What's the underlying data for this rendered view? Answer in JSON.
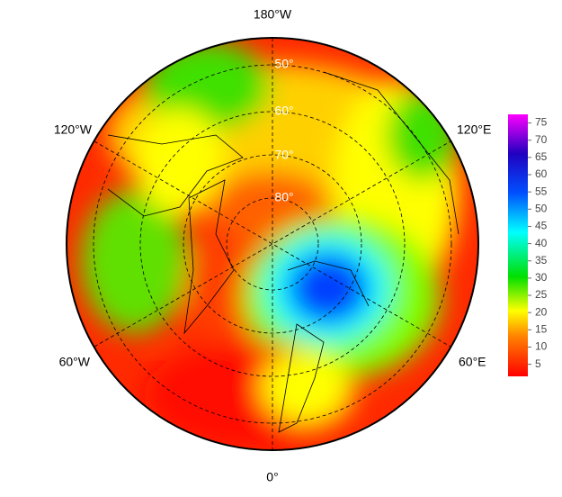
{
  "map": {
    "longitude_labels": {
      "top": "180°W",
      "upper_right": "120°E",
      "lower_right": "60°E",
      "bottom": "0°",
      "lower_left": "60°W",
      "upper_left": "120°W"
    },
    "latitude_labels": [
      "50°",
      "60°",
      "70°",
      "80°"
    ],
    "colorbar": {
      "lim": [
        1.5,
        77.5
      ],
      "ticks": [
        5,
        10,
        15,
        20,
        25,
        30,
        35,
        40,
        45,
        50,
        55,
        60,
        65,
        70,
        75
      ]
    }
  }
}
